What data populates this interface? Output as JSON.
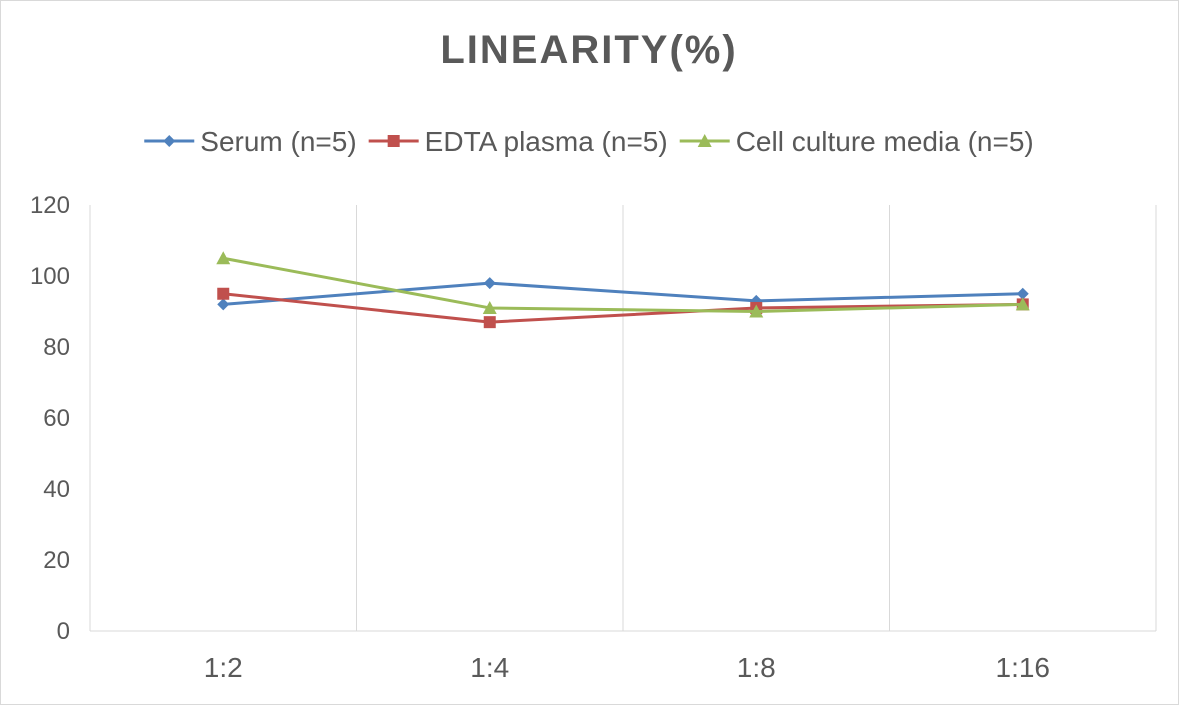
{
  "chart_data": {
    "type": "line",
    "title": "LINEARITY(%)",
    "xlabel": "",
    "ylabel": "",
    "categories": [
      "1:2",
      "1:4",
      "1:8",
      "1:16"
    ],
    "ylim": [
      0,
      120
    ],
    "yticks": [
      0,
      20,
      40,
      60,
      80,
      100,
      120
    ],
    "grid": "vertical",
    "legend_position": "top",
    "series": [
      {
        "name": "Serum (n=5)",
        "values": [
          92,
          98,
          93,
          95
        ],
        "color": "#4f81bd",
        "marker": "diamond"
      },
      {
        "name": "EDTA plasma (n=5)",
        "values": [
          95,
          87,
          91,
          92
        ],
        "color": "#c0504d",
        "marker": "square"
      },
      {
        "name": "Cell culture media (n=5)",
        "values": [
          105,
          91,
          90,
          92
        ],
        "color": "#9bbb59",
        "marker": "triangle"
      }
    ]
  }
}
